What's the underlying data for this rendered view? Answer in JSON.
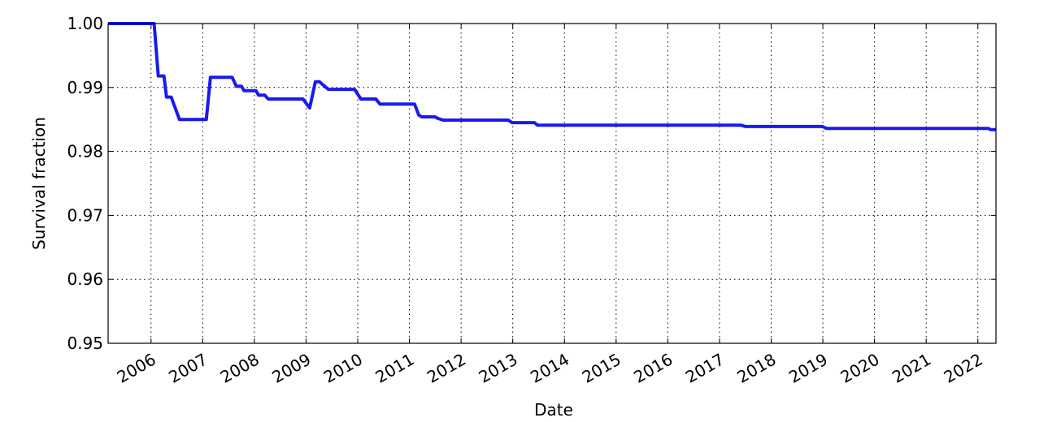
{
  "chart_data": {
    "type": "line",
    "x_label": "Date",
    "y_label": "Survival fraction",
    "xlim": [
      2005.17,
      2022.35
    ],
    "xticks": [
      2006,
      2007,
      2008,
      2009,
      2010,
      2011,
      2012,
      2013,
      2014,
      2015,
      2016,
      2017,
      2018,
      2019,
      2020,
      2021,
      2022
    ],
    "ylim": [
      0.95,
      1.0
    ],
    "yticks": [
      0.95,
      0.96,
      0.97,
      0.98,
      0.99,
      {
        "value": 1.0,
        "label": "1.00"
      }
    ],
    "grid": true,
    "series": [
      {
        "name": "Survival fraction",
        "color": "#1a1aee",
        "x": [
          2005.17,
          2006.06,
          2006.14,
          2006.25,
          2006.3,
          2006.39,
          2006.55,
          2007.07,
          2007.15,
          2007.57,
          2007.65,
          2007.75,
          2007.8,
          2008.03,
          2008.08,
          2008.2,
          2008.27,
          2008.94,
          2009.07,
          2009.18,
          2009.26,
          2009.43,
          2009.94,
          2010.06,
          2010.35,
          2010.43,
          2011.1,
          2011.18,
          2011.24,
          2011.5,
          2011.54,
          2011.65,
          2012.91,
          2012.99,
          2013.42,
          2013.48,
          2017.42,
          2017.5,
          2018.99,
          2019.07,
          2022.2,
          2022.25,
          2022.35
        ],
        "values": [
          1.0,
          1.0,
          0.9918,
          0.9918,
          0.9885,
          0.9885,
          0.985,
          0.985,
          0.9916,
          0.9916,
          0.9902,
          0.9902,
          0.9895,
          0.9895,
          0.9888,
          0.9888,
          0.9882,
          0.9882,
          0.9868,
          0.9909,
          0.9909,
          0.9897,
          0.9897,
          0.9882,
          0.9882,
          0.9874,
          0.9874,
          0.9857,
          0.9854,
          0.9854,
          0.9852,
          0.9849,
          0.9849,
          0.9845,
          0.9845,
          0.9841,
          0.9841,
          0.9839,
          0.9839,
          0.9836,
          0.9836,
          0.9834,
          0.9834
        ]
      }
    ]
  }
}
